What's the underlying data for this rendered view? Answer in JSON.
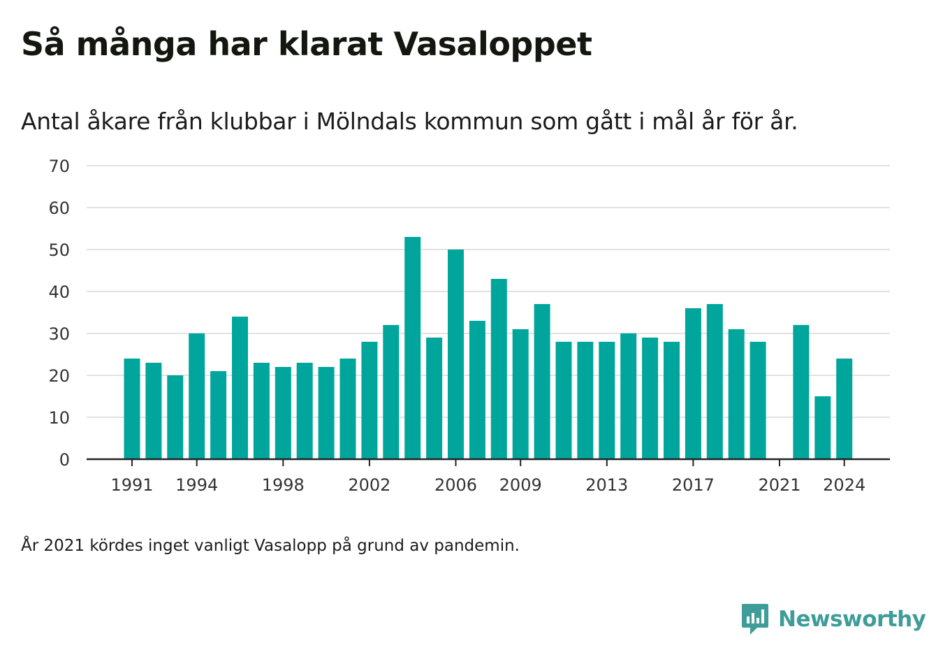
{
  "header": {
    "title": "Så många har klarat Vasaloppet",
    "subtitle": "Antal åkare från klubbar i Mölndals kommun som gått i mål år för år."
  },
  "footnote": "År 2021 kördes inget vanligt Vasalopp på grund av pandemin.",
  "brand": {
    "name": "Newsworthy",
    "logo_icon": "newsworthy-chat-bars-icon"
  },
  "colors": {
    "bar": "#00a69c",
    "grid": "#e2e2e2",
    "axis": "#222222",
    "brand": "#3e9d98"
  },
  "chart_data": {
    "type": "bar",
    "categories": [
      "1991",
      "1992",
      "1993",
      "1994",
      "1995",
      "1996",
      "1997",
      "1998",
      "1999",
      "2000",
      "2001",
      "2002",
      "2003",
      "2004",
      "2005",
      "2006",
      "2007",
      "2008",
      "2009",
      "2010",
      "2011",
      "2012",
      "2013",
      "2014",
      "2015",
      "2016",
      "2017",
      "2018",
      "2019",
      "2020",
      "2021",
      "2022",
      "2023",
      "2024"
    ],
    "values": [
      24,
      23,
      20,
      30,
      21,
      34,
      23,
      22,
      23,
      22,
      24,
      28,
      32,
      53,
      29,
      50,
      33,
      43,
      31,
      37,
      28,
      28,
      28,
      30,
      29,
      28,
      36,
      37,
      31,
      28,
      null,
      32,
      15,
      24
    ],
    "x_tick_labels": [
      "1991",
      "1994",
      "1998",
      "2002",
      "2006",
      "2009",
      "2013",
      "2017",
      "2021",
      "2024"
    ],
    "y_ticks": [
      0,
      10,
      20,
      30,
      40,
      50,
      60,
      70
    ],
    "ylim": [
      0,
      70
    ],
    "grid": true,
    "title": "Så många har klarat Vasaloppet",
    "subtitle": "Antal åkare från klubbar i Mölndals kommun som gått i mål år för år.",
    "xlabel": "",
    "ylabel": ""
  }
}
